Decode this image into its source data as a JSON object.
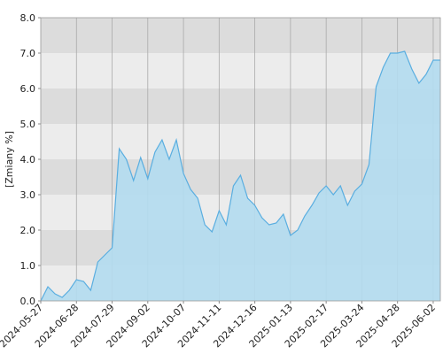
{
  "chart_data": {
    "type": "area",
    "y_label": "[Zmiany %]",
    "categories": [
      "2024-05-27",
      null,
      null,
      null,
      null,
      "2024-06-28",
      null,
      null,
      null,
      null,
      "2024-07-29",
      null,
      null,
      null,
      null,
      "2024-09-02",
      null,
      null,
      null,
      null,
      "2024-10-07",
      null,
      null,
      null,
      null,
      "2024-11-11",
      null,
      null,
      null,
      null,
      "2024-12-16",
      null,
      null,
      null,
      null,
      "2025-01-13",
      null,
      null,
      null,
      null,
      "2025-02-17",
      null,
      null,
      null,
      null,
      "2025-03-24",
      null,
      null,
      null,
      null,
      "2025-04-28",
      null,
      null,
      null,
      null,
      "2025-06-02",
      null
    ],
    "values": [
      0.0,
      0.4,
      0.2,
      0.1,
      0.3,
      0.6,
      0.55,
      0.3,
      1.1,
      1.3,
      1.5,
      4.3,
      4.0,
      3.4,
      4.05,
      3.45,
      4.2,
      4.55,
      4.0,
      4.55,
      3.6,
      3.15,
      2.9,
      2.15,
      1.95,
      2.55,
      2.15,
      3.25,
      3.55,
      2.9,
      2.7,
      2.35,
      2.15,
      2.2,
      2.45,
      1.85,
      2.0,
      2.4,
      2.7,
      3.05,
      3.25,
      3.0,
      3.25,
      2.7,
      3.1,
      3.3,
      3.85,
      6.05,
      6.6,
      7.0,
      7.0,
      7.05,
      6.55,
      6.15,
      6.4,
      6.8,
      6.8
    ],
    "color": "#5aaee0",
    "fill": "#b3dcef",
    "ylim": [
      0,
      8
    ],
    "yticks": [
      {
        "value": 0,
        "label": "0.0"
      },
      {
        "value": 1,
        "label": "1.0"
      },
      {
        "value": 2,
        "label": "2.0"
      },
      {
        "value": 3,
        "label": "3.0"
      },
      {
        "value": 4,
        "label": "4.0"
      },
      {
        "value": 5,
        "label": "5.0"
      },
      {
        "value": 6,
        "label": "6.0"
      },
      {
        "value": 7,
        "label": "7.0"
      },
      {
        "value": 8,
        "label": "8.0"
      }
    ],
    "grid": true
  }
}
